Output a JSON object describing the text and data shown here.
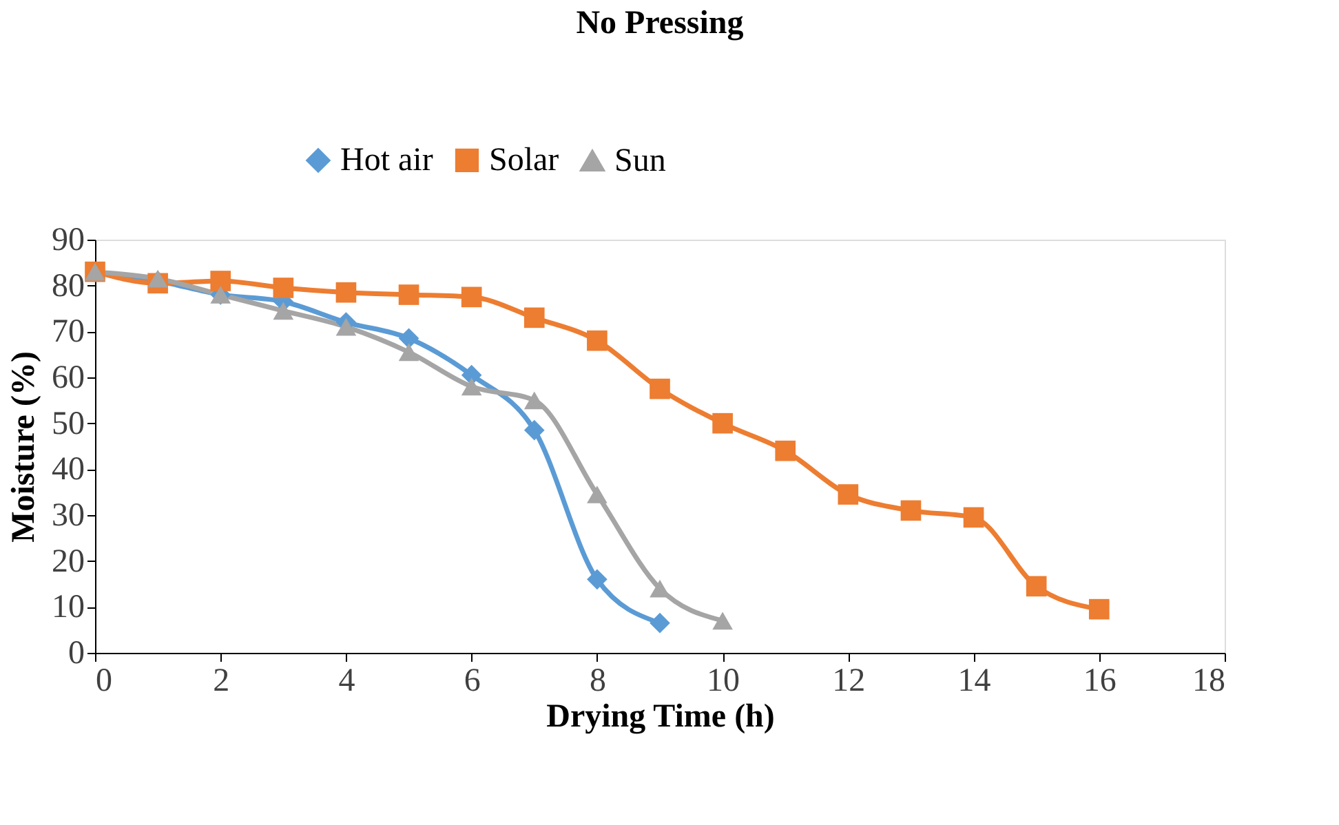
{
  "chart_data": {
    "type": "line",
    "title": "No Pressing",
    "xlabel": "Drying Time (h)",
    "ylabel": "Moisture (%)",
    "xlim": [
      0,
      18
    ],
    "xticks": [
      0,
      2,
      4,
      6,
      8,
      10,
      12,
      14,
      16,
      18
    ],
    "ylim": [
      0,
      90
    ],
    "yticks": [
      0,
      10,
      20,
      30,
      40,
      50,
      60,
      70,
      80,
      90
    ],
    "grid": false,
    "legend": "top",
    "line_style": "solid",
    "series": [
      {
        "name": "Hot air",
        "color": "#5b9bd5",
        "marker": "diamond",
        "x": [
          0,
          1,
          2,
          3,
          4,
          5,
          6,
          7,
          8,
          9
        ],
        "values": [
          83,
          81,
          78,
          76.5,
          72,
          68.5,
          60.5,
          48.5,
          16,
          6.5
        ]
      },
      {
        "name": "Solar",
        "color": "#ed7d31",
        "marker": "square",
        "x": [
          0,
          1,
          2,
          3,
          4,
          5,
          6,
          7,
          8,
          9,
          10,
          11,
          12,
          13,
          14,
          15,
          16
        ],
        "values": [
          83,
          80.5,
          81,
          79.5,
          78.5,
          78,
          77.5,
          73,
          68,
          57.5,
          50,
          44,
          34.5,
          31,
          29.5,
          14.5,
          9.5
        ]
      },
      {
        "name": "Sun",
        "color": "#a5a5a5",
        "marker": "triangle",
        "x": [
          0,
          1,
          2,
          3,
          4,
          5,
          6,
          7,
          8,
          9,
          10
        ],
        "values": [
          83,
          81.5,
          78,
          74.5,
          71,
          65.5,
          58,
          55,
          34.5,
          14,
          7
        ]
      }
    ]
  }
}
